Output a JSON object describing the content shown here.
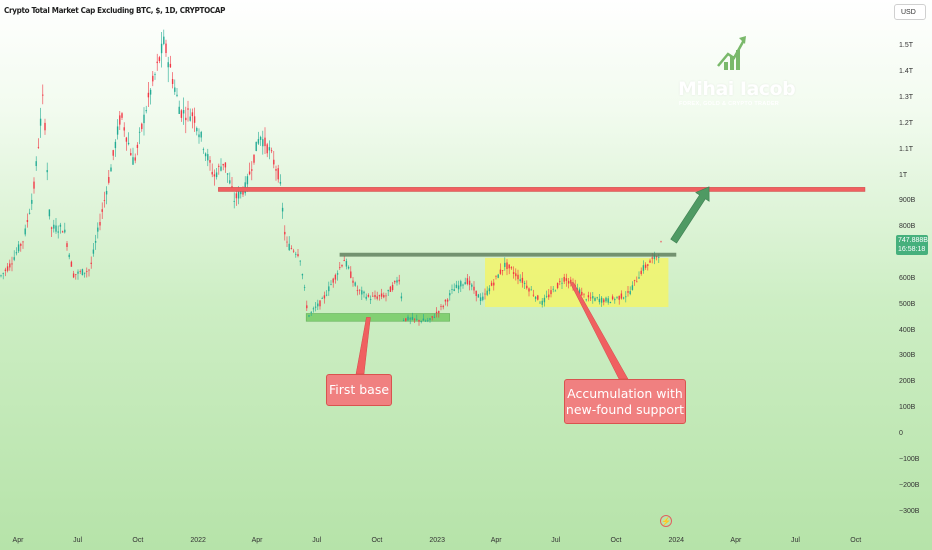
{
  "header": {
    "title": "Crypto Total Market Cap Excluding BTC, $, 1D, CRYPTOCAP",
    "currency": "USD"
  },
  "price_tag": {
    "value": "747.888B",
    "countdown": "16:58:18"
  },
  "logo": {
    "name": "Mihai Iacob",
    "tagline": "FOREX, GOLD & CRYPTO TRADER"
  },
  "event_icon": "lightning-icon",
  "annotations": {
    "first_base": "First base",
    "accumulation": [
      "Accumulation with",
      "new-found support"
    ]
  },
  "colors": {
    "up": "#22ab94",
    "down": "#f23645",
    "resistance": "#f06060",
    "support_box": "#7fcf6f",
    "range_box": "#f2f56a",
    "range_top": "#5a7a58",
    "arrow": "#4f9a63",
    "price_tag": "#46b07d"
  },
  "chart_data": {
    "type": "candlestick",
    "title": "Crypto Total Market Cap Excluding BTC, $, 1D, CRYPTOCAP",
    "currency": "USD",
    "y_ticks": [
      "1.5T",
      "1.4T",
      "1.3T",
      "1.2T",
      "1.1T",
      "1T",
      "900B",
      "800B",
      "600B",
      "500B",
      "400B",
      "300B",
      "200B",
      "100B",
      "0",
      "−100B",
      "−200B",
      "−300B"
    ],
    "x_ticks": [
      "Apr",
      "Jul",
      "Oct",
      "2022",
      "Apr",
      "Jul",
      "Oct",
      "2023",
      "Apr",
      "Jul",
      "Oct",
      "2024",
      "Apr",
      "Jul",
      "Oct"
    ],
    "ylim": [
      -300,
      1550
    ],
    "series": [
      {
        "points": [
          {
            "date": "2021-03-01",
            "value": 600
          },
          {
            "date": "2021-03-20",
            "value": 660
          },
          {
            "date": "2021-04-10",
            "value": 760
          },
          {
            "date": "2021-04-25",
            "value": 950
          },
          {
            "date": "2021-05-10",
            "value": 1320
          },
          {
            "date": "2021-05-20",
            "value": 800
          },
          {
            "date": "2021-06-10",
            "value": 800
          },
          {
            "date": "2021-06-25",
            "value": 620
          },
          {
            "date": "2021-07-20",
            "value": 640
          },
          {
            "date": "2021-08-20",
            "value": 1020
          },
          {
            "date": "2021-09-05",
            "value": 1240
          },
          {
            "date": "2021-09-25",
            "value": 1050
          },
          {
            "date": "2021-10-15",
            "value": 1280
          },
          {
            "date": "2021-11-10",
            "value": 1520
          },
          {
            "date": "2021-12-05",
            "value": 1250
          },
          {
            "date": "2021-12-25",
            "value": 1240
          },
          {
            "date": "2022-01-25",
            "value": 1000
          },
          {
            "date": "2022-02-10",
            "value": 1060
          },
          {
            "date": "2022-02-25",
            "value": 910
          },
          {
            "date": "2022-03-15",
            "value": 960
          },
          {
            "date": "2022-04-05",
            "value": 1160
          },
          {
            "date": "2022-04-20",
            "value": 1100
          },
          {
            "date": "2022-05-05",
            "value": 1000
          },
          {
            "date": "2022-05-15",
            "value": 740
          },
          {
            "date": "2022-06-05",
            "value": 700
          },
          {
            "date": "2022-06-18",
            "value": 460
          },
          {
            "date": "2022-07-10",
            "value": 520
          },
          {
            "date": "2022-08-12",
            "value": 680
          },
          {
            "date": "2022-09-01",
            "value": 560
          },
          {
            "date": "2022-09-20",
            "value": 530
          },
          {
            "date": "2022-10-15",
            "value": 540
          },
          {
            "date": "2022-11-05",
            "value": 610
          },
          {
            "date": "2022-11-10",
            "value": 450
          },
          {
            "date": "2022-12-20",
            "value": 440
          },
          {
            "date": "2023-01-10",
            "value": 500
          },
          {
            "date": "2023-01-25",
            "value": 560
          },
          {
            "date": "2023-02-15",
            "value": 600
          },
          {
            "date": "2023-03-10",
            "value": 520
          },
          {
            "date": "2023-04-15",
            "value": 660
          },
          {
            "date": "2023-05-10",
            "value": 600
          },
          {
            "date": "2023-06-10",
            "value": 510
          },
          {
            "date": "2023-07-15",
            "value": 610
          },
          {
            "date": "2023-08-17",
            "value": 530
          },
          {
            "date": "2023-09-20",
            "value": 520
          },
          {
            "date": "2023-10-20",
            "value": 545
          },
          {
            "date": "2023-11-10",
            "value": 640
          },
          {
            "date": "2023-12-05",
            "value": 700
          },
          {
            "date": "2023-12-10",
            "value": 750
          }
        ]
      }
    ],
    "annotations": [
      {
        "type": "hline",
        "label": "",
        "value": 950,
        "from": "2022-02-01",
        "to": "2024-10-15"
      },
      {
        "type": "box",
        "label": "",
        "y": [
          440,
          470
        ],
        "from": "2022-06-15",
        "to": "2023-01-20"
      },
      {
        "type": "box",
        "label": "",
        "y": [
          690,
          705
        ],
        "from": "2022-08-05",
        "to": "2024-01-01"
      },
      {
        "type": "box",
        "label": "",
        "y": [
          495,
          685
        ],
        "from": "2023-03-15",
        "to": "2023-12-20"
      },
      {
        "type": "callout",
        "label": "First base"
      },
      {
        "type": "callout",
        "label": "Accumulation with new-found support"
      }
    ],
    "last_value": "747.888B"
  }
}
